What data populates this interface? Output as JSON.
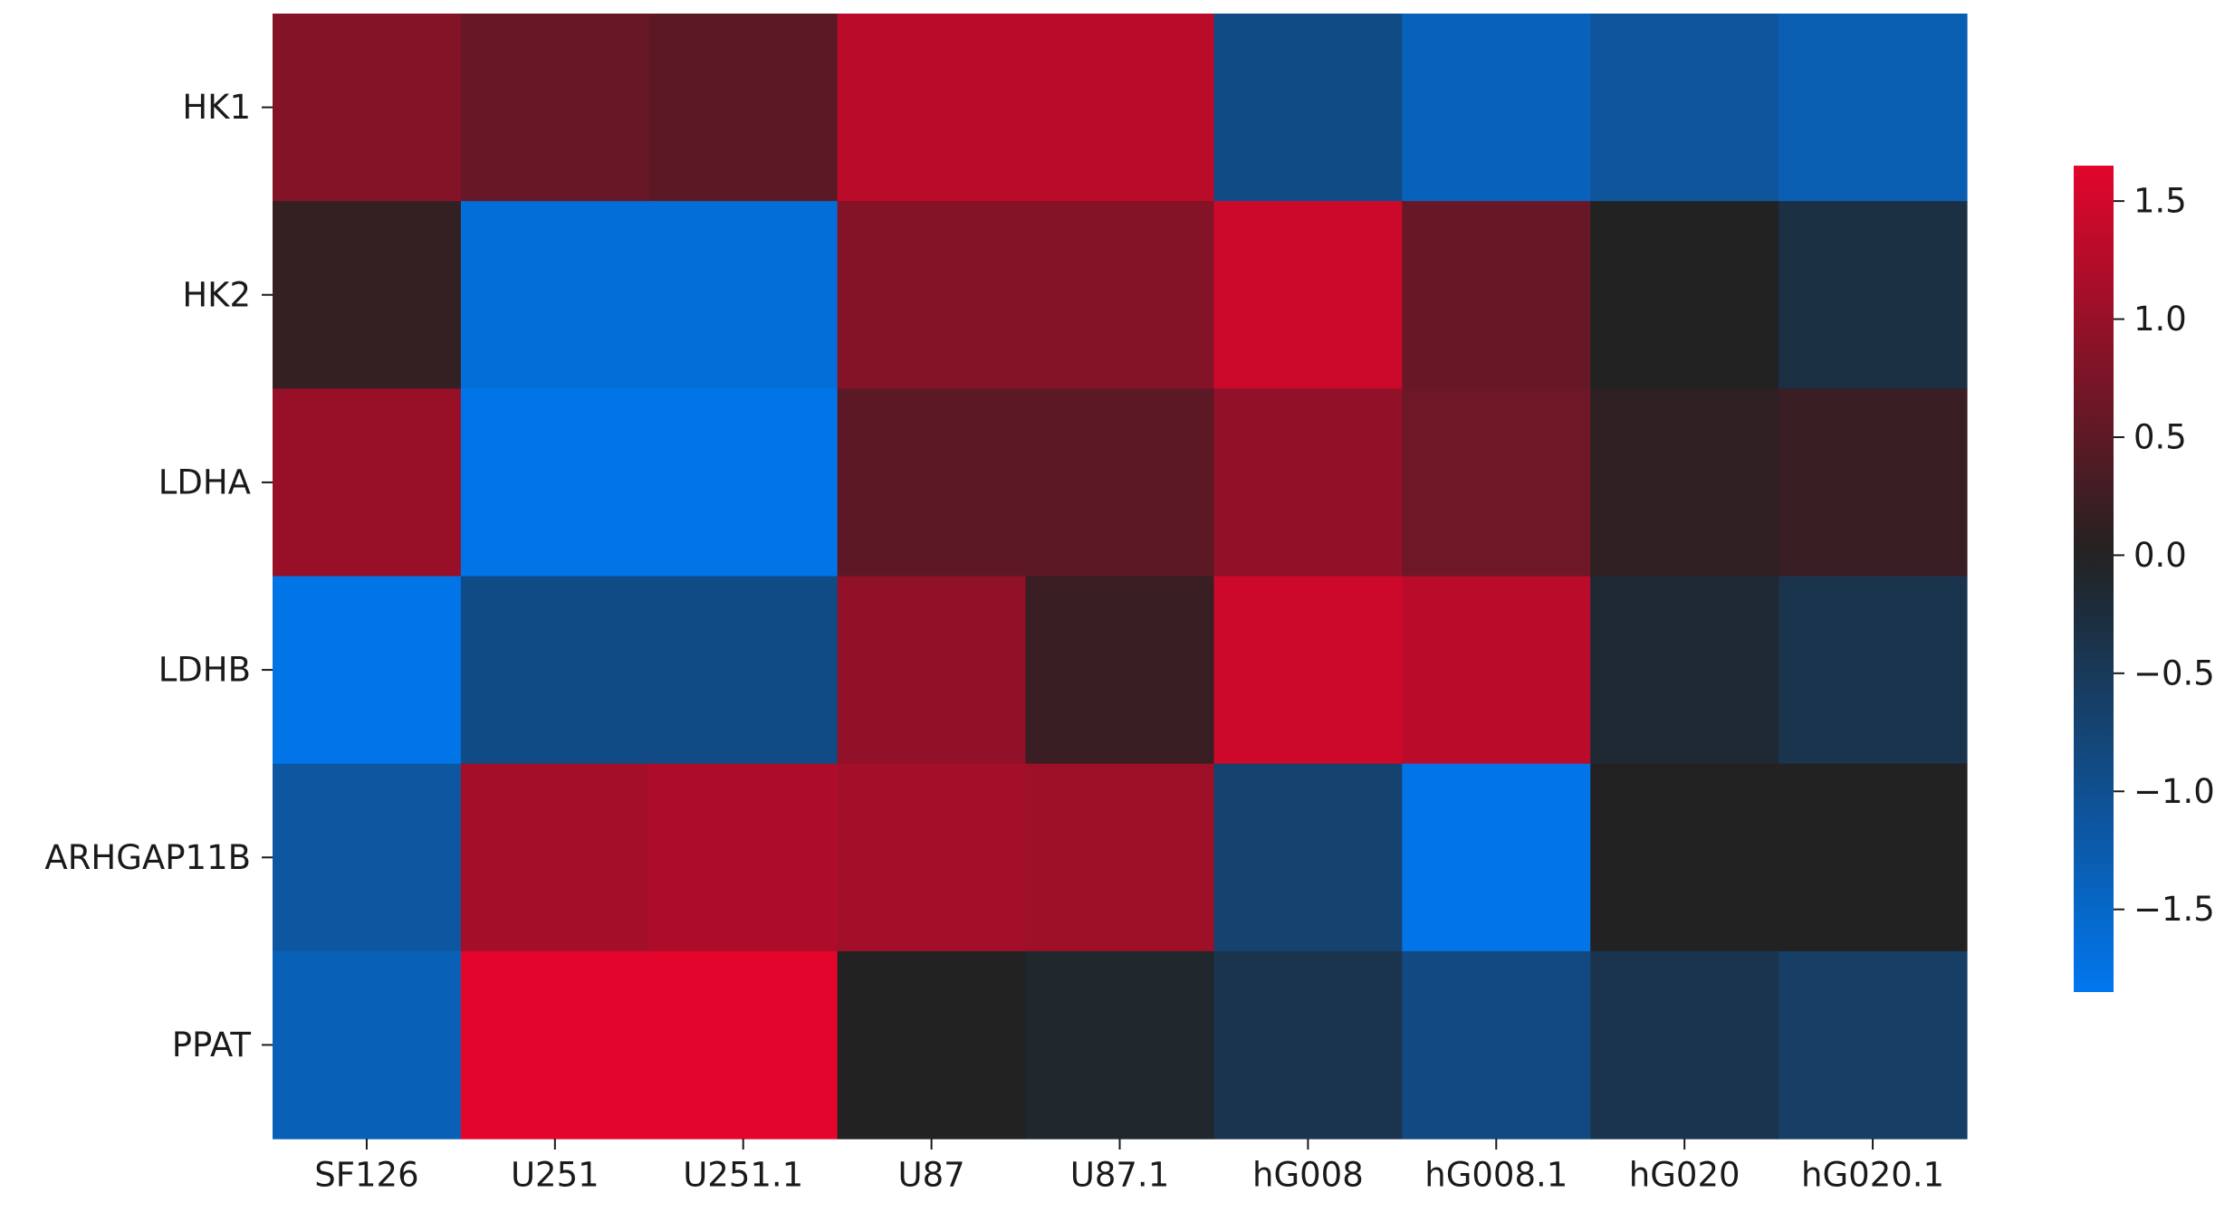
{
  "chart_data": {
    "type": "heatmap",
    "title": "",
    "xlabel": "",
    "ylabel": "",
    "columns": [
      "SF126",
      "U251",
      "U251.1",
      "U87",
      "U87.1",
      "hG008",
      "hG008.1",
      "hG020",
      "hG020.1"
    ],
    "rows": [
      "HK1",
      "HK2",
      "LDHA",
      "LDHB",
      "ARHGAP11B",
      "PPAT"
    ],
    "values": [
      [
        0.85,
        0.6,
        0.5,
        1.3,
        1.3,
        -0.9,
        -1.4,
        -1.1,
        -1.3
      ],
      [
        0.15,
        -1.65,
        -1.65,
        0.85,
        0.85,
        1.45,
        0.6,
        0.0,
        -0.3
      ],
      [
        1.0,
        -1.8,
        -1.8,
        0.5,
        0.5,
        0.95,
        0.65,
        0.1,
        0.2
      ],
      [
        -1.8,
        -0.9,
        -0.9,
        0.95,
        0.2,
        1.45,
        1.3,
        -0.15,
        -0.4
      ],
      [
        -1.15,
        1.1,
        1.2,
        1.1,
        1.05,
        -0.7,
        -1.8,
        0.0,
        0.0
      ],
      [
        -1.35,
        1.65,
        1.65,
        0.0,
        -0.1,
        -0.4,
        -0.85,
        -0.4,
        -0.6
      ]
    ],
    "colorbar": {
      "min": -1.85,
      "max": 1.65,
      "ticks": [
        1.5,
        1.0,
        0.5,
        0.0,
        -0.5,
        -1.0,
        -1.5
      ],
      "tick_labels": [
        "1.5",
        "1.0",
        "0.5",
        "0.0",
        "−0.5",
        "−1.0",
        "−1.5"
      ],
      "colors": {
        "low": "#0077ee",
        "mid": "#222222",
        "high": "#e3052c"
      }
    },
    "grid": false
  }
}
